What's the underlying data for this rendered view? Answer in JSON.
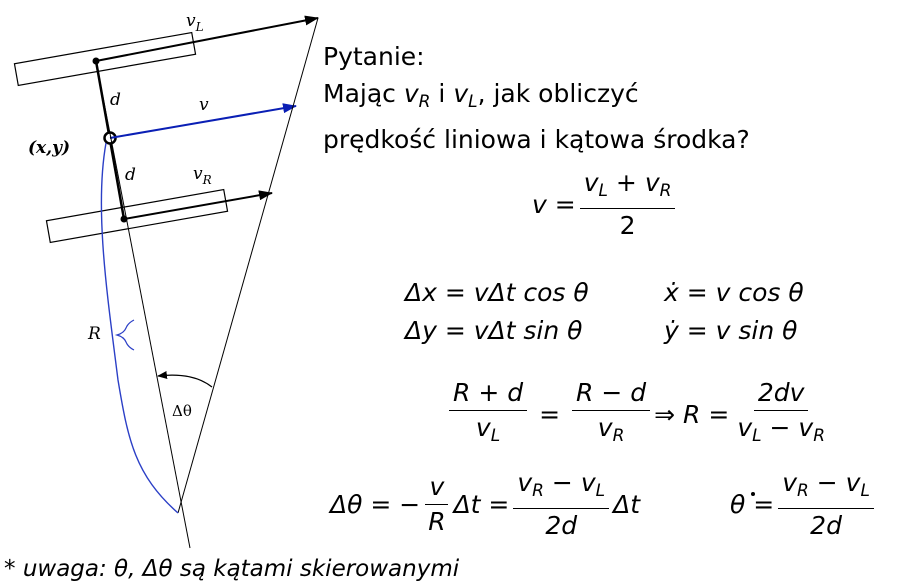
{
  "diagram": {
    "labels": {
      "vL": "v",
      "vL_sub": "L",
      "v": "v",
      "vR": "v",
      "vR_sub": "R",
      "d_top": "d",
      "d_bottom": "d",
      "center": "(x,y)",
      "radius": "R",
      "angle": "Δθ"
    },
    "colors": {
      "ink": "#000000",
      "velocity_blue": "#0a1fb5",
      "curve_blue": "#2b3fc6"
    }
  },
  "question": {
    "title": "Pytanie:",
    "line1_prefix": "Mając ",
    "line1_and": " i ",
    "line1_suffix": ", jak obliczyć",
    "line2": "prędkość liniowa i kątowa środka?",
    "v_sym": "v",
    "sub_R": "R",
    "sub_L": "L"
  },
  "formulas": {
    "f1_lhs": "v =",
    "f1_num": "v",
    "f1_num_sub1": "L",
    "f1_num_plus": " + v",
    "f1_num_sub2": "R",
    "f1_den": "2",
    "dx_lhs": "Δx = vΔt cos θ",
    "dy_lhs": "Δy = vΔt sin θ",
    "xdot": "ẋ = v  cos θ",
    "ydot": "ẏ = v  sin θ",
    "f3_num1": "R + d",
    "f3_den1": "v",
    "f3_den1_sub": "L",
    "f3_eq": "=",
    "f3_num2": "R − d",
    "f3_den2": "v",
    "f3_den2_sub": "R",
    "f3_implies": "⇒ R =",
    "f3_num3": "2dv",
    "f3_den3": "v",
    "f3_den3_sub1": "L",
    "f3_den3_minus": " − v",
    "f3_den3_sub2": "R",
    "f4_lhs": "Δθ = −",
    "f4_num1": "v",
    "f4_den1": "R",
    "f4_mid": "Δt =",
    "f4_num2": "v",
    "f4_num2_sub1": "R",
    "f4_num2_minus": " − v",
    "f4_num2_sub2": "L",
    "f4_den2": "2d",
    "f4_dt": "Δt",
    "f5_lhs": "θ =",
    "f5_num": "v",
    "f5_num_sub1": "R",
    "f5_num_minus": " − v",
    "f5_num_sub2": "L",
    "f5_den": "2d"
  },
  "note": {
    "star": "* ",
    "text": "uwaga: θ, Δθ są kątami skierowanymi"
  }
}
